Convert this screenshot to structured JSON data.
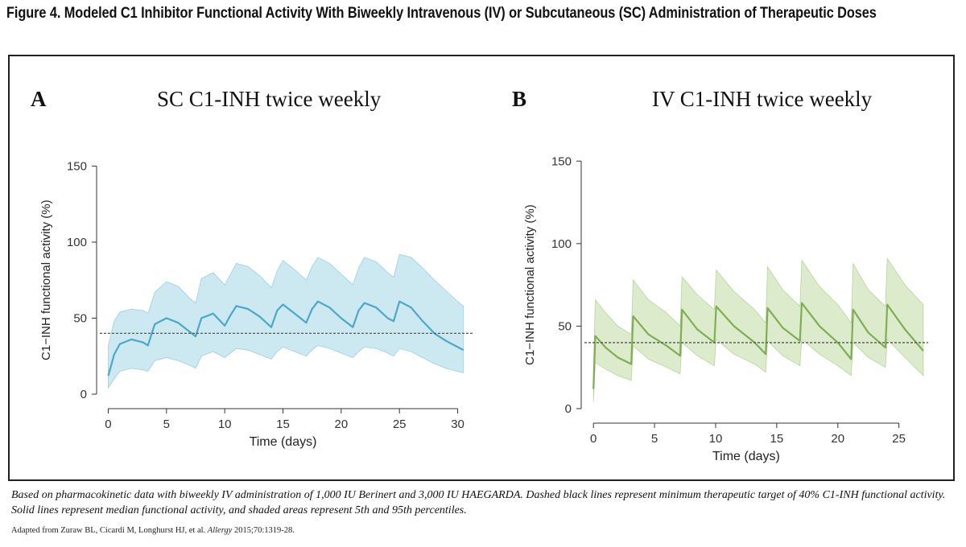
{
  "figure": {
    "title": "Figure 4. Modeled C1 Inhibitor Functional Activity With Biweekly Intravenous (IV) or Subcutaneous (SC) Administration of Therapeutic Doses",
    "caption": "Based on pharmacokinetic data with biweekly IV administration of 1,000 IU Berinert and 3,000 IU HAEGARDA. Dashed black lines represent minimum therapeutic target of 40% C1-INH functional activity. Solid lines represent median functional activity, and shaded areas represent 5th and 95th percentiles.",
    "source_prefix": "Adapted from Zuraw BL, Cicardi M, Longhurst HJ, et al. ",
    "source_journal": "Allergy",
    "source_suffix": " 2015;70:1319-28."
  },
  "colors": {
    "sc_line": "#4aa8c8",
    "sc_band": "#bfe2ee",
    "iv_line": "#7fae52",
    "iv_band": "#d3e6bf",
    "threshold": "#555555"
  },
  "chart_data": [
    {
      "type": "area",
      "panel_label": "A",
      "title": "SC C1-INH twice weekly",
      "xlabel": "Time (days)",
      "ylabel": "C1−INH functional activity (%)",
      "xlim": [
        -1,
        31
      ],
      "ylim": [
        0,
        150
      ],
      "xticks": [
        0,
        5,
        10,
        15,
        20,
        25,
        30
      ],
      "yticks": [
        0,
        50,
        100,
        150
      ],
      "threshold": 40,
      "series": [
        {
          "name": "median",
          "x": [
            0,
            0.5,
            1,
            2,
            3,
            3.4,
            4,
            5,
            6,
            7,
            7.5,
            8,
            9,
            10,
            10.5,
            11,
            12,
            13,
            14,
            14.5,
            15,
            16,
            17,
            17.5,
            18,
            19,
            20,
            21,
            21.5,
            22,
            23,
            24,
            24.5,
            25,
            26,
            27,
            28,
            29,
            30,
            30.5
          ],
          "values": [
            12,
            26,
            33,
            36,
            34,
            32,
            46,
            50,
            47,
            41,
            38,
            50,
            53,
            45,
            52,
            58,
            56,
            51,
            44,
            55,
            59,
            53,
            47,
            56,
            61,
            57,
            50,
            44,
            55,
            60,
            57,
            50,
            48,
            61,
            57,
            48,
            40,
            35,
            31,
            29
          ]
        },
        {
          "name": "5th percentile",
          "x": [
            0,
            0.5,
            1,
            2,
            3,
            3.4,
            4,
            5,
            6,
            7,
            7.5,
            8,
            9,
            10,
            10.5,
            11,
            12,
            13,
            14,
            14.5,
            15,
            16,
            17,
            17.5,
            18,
            19,
            20,
            21,
            21.5,
            22,
            23,
            24,
            24.5,
            25,
            26,
            27,
            28,
            29,
            30,
            30.5
          ],
          "values": [
            4,
            10,
            15,
            17,
            16,
            15,
            22,
            24,
            22,
            19,
            17,
            25,
            28,
            24,
            27,
            30,
            29,
            26,
            23,
            28,
            31,
            28,
            25,
            29,
            32,
            30,
            27,
            24,
            28,
            31,
            30,
            27,
            25,
            30,
            28,
            24,
            20,
            17,
            15,
            14
          ]
        },
        {
          "name": "95th percentile",
          "x": [
            0,
            0.5,
            1,
            2,
            3,
            3.4,
            4,
            5,
            6,
            7,
            7.5,
            8,
            9,
            10,
            10.5,
            11,
            12,
            13,
            14,
            14.5,
            15,
            16,
            17,
            17.5,
            18,
            19,
            20,
            21,
            21.5,
            22,
            23,
            24,
            24.5,
            25,
            26,
            27,
            28,
            29,
            30,
            30.5
          ],
          "values": [
            32,
            48,
            54,
            56,
            55,
            53,
            67,
            74,
            71,
            63,
            60,
            76,
            80,
            72,
            79,
            86,
            84,
            78,
            70,
            81,
            88,
            82,
            75,
            84,
            90,
            86,
            79,
            72,
            83,
            90,
            87,
            80,
            77,
            92,
            90,
            83,
            75,
            68,
            61,
            58
          ]
        }
      ]
    },
    {
      "type": "area",
      "panel_label": "B",
      "title": "IV C1-INH twice weekly",
      "xlabel": "Time (days)",
      "ylabel": "C1−INH functional activity (%)",
      "xlim": [
        -1,
        27
      ],
      "ylim": [
        0,
        150
      ],
      "xticks": [
        0,
        5,
        10,
        15,
        20,
        25
      ],
      "yticks": [
        0,
        50,
        100,
        150
      ],
      "threshold": 40,
      "series": [
        {
          "name": "median",
          "x": [
            0,
            0.15,
            1,
            2,
            3.1,
            3.25,
            4.5,
            6,
            7.1,
            7.25,
            8.5,
            9.9,
            10.05,
            11.5,
            13.2,
            14.1,
            14.25,
            15.5,
            16.9,
            17.05,
            18.5,
            20.0,
            21.1,
            21.25,
            22.5,
            23.9,
            24.05,
            25.5,
            27
          ],
          "values": [
            12,
            44,
            37,
            31,
            27,
            56,
            45,
            38,
            32,
            60,
            48,
            40,
            62,
            50,
            40,
            33,
            61,
            49,
            41,
            64,
            50,
            40,
            30,
            60,
            46,
            37,
            63,
            48,
            35
          ]
        },
        {
          "name": "5th percentile",
          "x": [
            0,
            0.15,
            1,
            2,
            3.1,
            3.25,
            4.5,
            6,
            7.1,
            7.25,
            8.5,
            9.9,
            10.05,
            11.5,
            13.2,
            14.1,
            14.25,
            15.5,
            16.9,
            17.05,
            18.5,
            20.0,
            21.1,
            21.25,
            22.5,
            23.9,
            24.05,
            25.5,
            27
          ],
          "values": [
            4,
            28,
            24,
            20,
            17,
            38,
            30,
            25,
            21,
            40,
            32,
            26,
            42,
            33,
            27,
            22,
            41,
            32,
            26,
            42,
            33,
            26,
            20,
            40,
            31,
            25,
            42,
            31,
            20
          ]
        },
        {
          "name": "95th percentile",
          "x": [
            0,
            0.15,
            1,
            2,
            3.1,
            3.25,
            4.5,
            6,
            7.1,
            7.25,
            8.5,
            9.9,
            10.05,
            11.5,
            13.2,
            14.1,
            14.25,
            15.5,
            16.9,
            17.05,
            18.5,
            20.0,
            21.1,
            21.25,
            22.5,
            23.9,
            24.05,
            25.5,
            27
          ],
          "values": [
            24,
            66,
            58,
            50,
            45,
            78,
            66,
            58,
            50,
            80,
            69,
            60,
            84,
            71,
            60,
            52,
            86,
            72,
            62,
            90,
            74,
            63,
            52,
            88,
            72,
            62,
            91,
            75,
            63
          ]
        }
      ]
    }
  ]
}
